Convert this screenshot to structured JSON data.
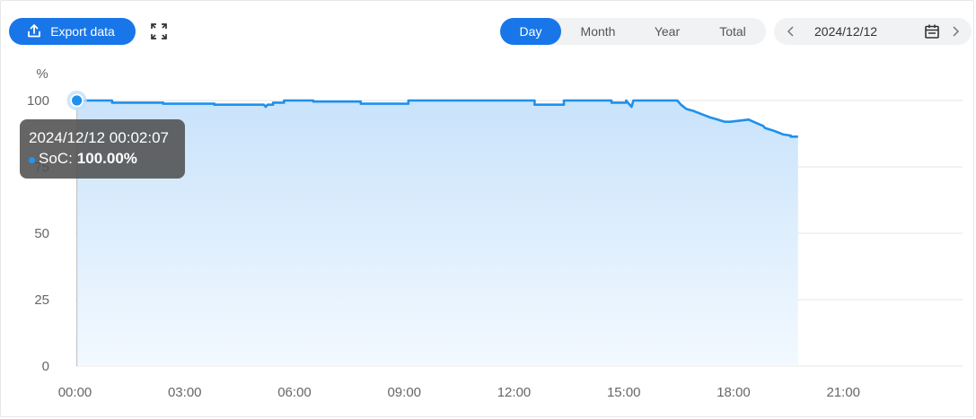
{
  "toolbar": {
    "export_label": "Export data",
    "export_icon": "upload-icon",
    "fullscreen_icon": "expand-icon"
  },
  "period_tabs": [
    {
      "label": "Day",
      "active": true
    },
    {
      "label": "Month",
      "active": false
    },
    {
      "label": "Year",
      "active": false
    },
    {
      "label": "Total",
      "active": false
    }
  ],
  "date_picker": {
    "value": "2024/12/12",
    "prev_icon": "chevron-left-icon",
    "calendar_icon": "calendar-icon",
    "next_icon": "chevron-right-icon"
  },
  "colors": {
    "accent": "#1976e8",
    "line": "#1e90ee",
    "area_top": "#c9e3fb",
    "area_bottom": "#f3f9ff",
    "grid": "#e6e6e6",
    "axis_text": "#666666"
  },
  "tooltip": {
    "time": "2024/12/12 00:02:07",
    "label": "SoC:",
    "value": "100.00%"
  },
  "chart_data": {
    "type": "area",
    "ylabel": "%",
    "xlabel": "",
    "ylim": [
      0,
      100
    ],
    "yticks": [
      "0",
      "25",
      "50",
      "75",
      "100"
    ],
    "xticks": [
      "00:00",
      "03:00",
      "06:00",
      "09:00",
      "12:00",
      "15:00",
      "18:00",
      "21:00"
    ],
    "xlim_hours": [
      0,
      24
    ],
    "grid": true,
    "series": [
      {
        "name": "SoC",
        "x": [
          0.04,
          0.1,
          0.25,
          1.0,
          1.0,
          2.4,
          2.4,
          3.8,
          3.8,
          5.15,
          5.2,
          5.25,
          5.3,
          5.4,
          5.4,
          5.7,
          5.7,
          6.5,
          6.5,
          7.8,
          7.8,
          9.1,
          9.1,
          12.55,
          12.55,
          13.35,
          13.35,
          14.65,
          14.65,
          15.05,
          15.05,
          15.2,
          15.25,
          15.3,
          15.3,
          16.45,
          16.55,
          16.7,
          16.9,
          17.05,
          17.2,
          17.35,
          17.55,
          17.75,
          17.9,
          17.9,
          18.4,
          18.4,
          18.6,
          18.8,
          18.85,
          19.05,
          19.2,
          19.35,
          19.55,
          19.55,
          19.75
        ],
        "y": [
          100,
          99.6,
          100,
          100,
          99.2,
          99.2,
          98.8,
          98.8,
          98.4,
          98.4,
          97.6,
          98.4,
          98.4,
          98.4,
          99.2,
          99.2,
          100,
          100,
          99.6,
          99.6,
          98.8,
          98.8,
          100,
          100,
          98.4,
          98.4,
          100,
          100,
          99.2,
          99.2,
          100,
          97.6,
          100,
          100,
          100,
          100,
          98.4,
          96.8,
          96.0,
          95.2,
          94.4,
          93.6,
          92.8,
          92.0,
          92.0,
          92.0,
          92.8,
          92.8,
          91.6,
          90.4,
          89.6,
          88.8,
          88.0,
          87.2,
          86.8,
          86.4,
          86.4
        ]
      }
    ],
    "highlight_point": {
      "x": 0.04,
      "y": 100
    }
  }
}
